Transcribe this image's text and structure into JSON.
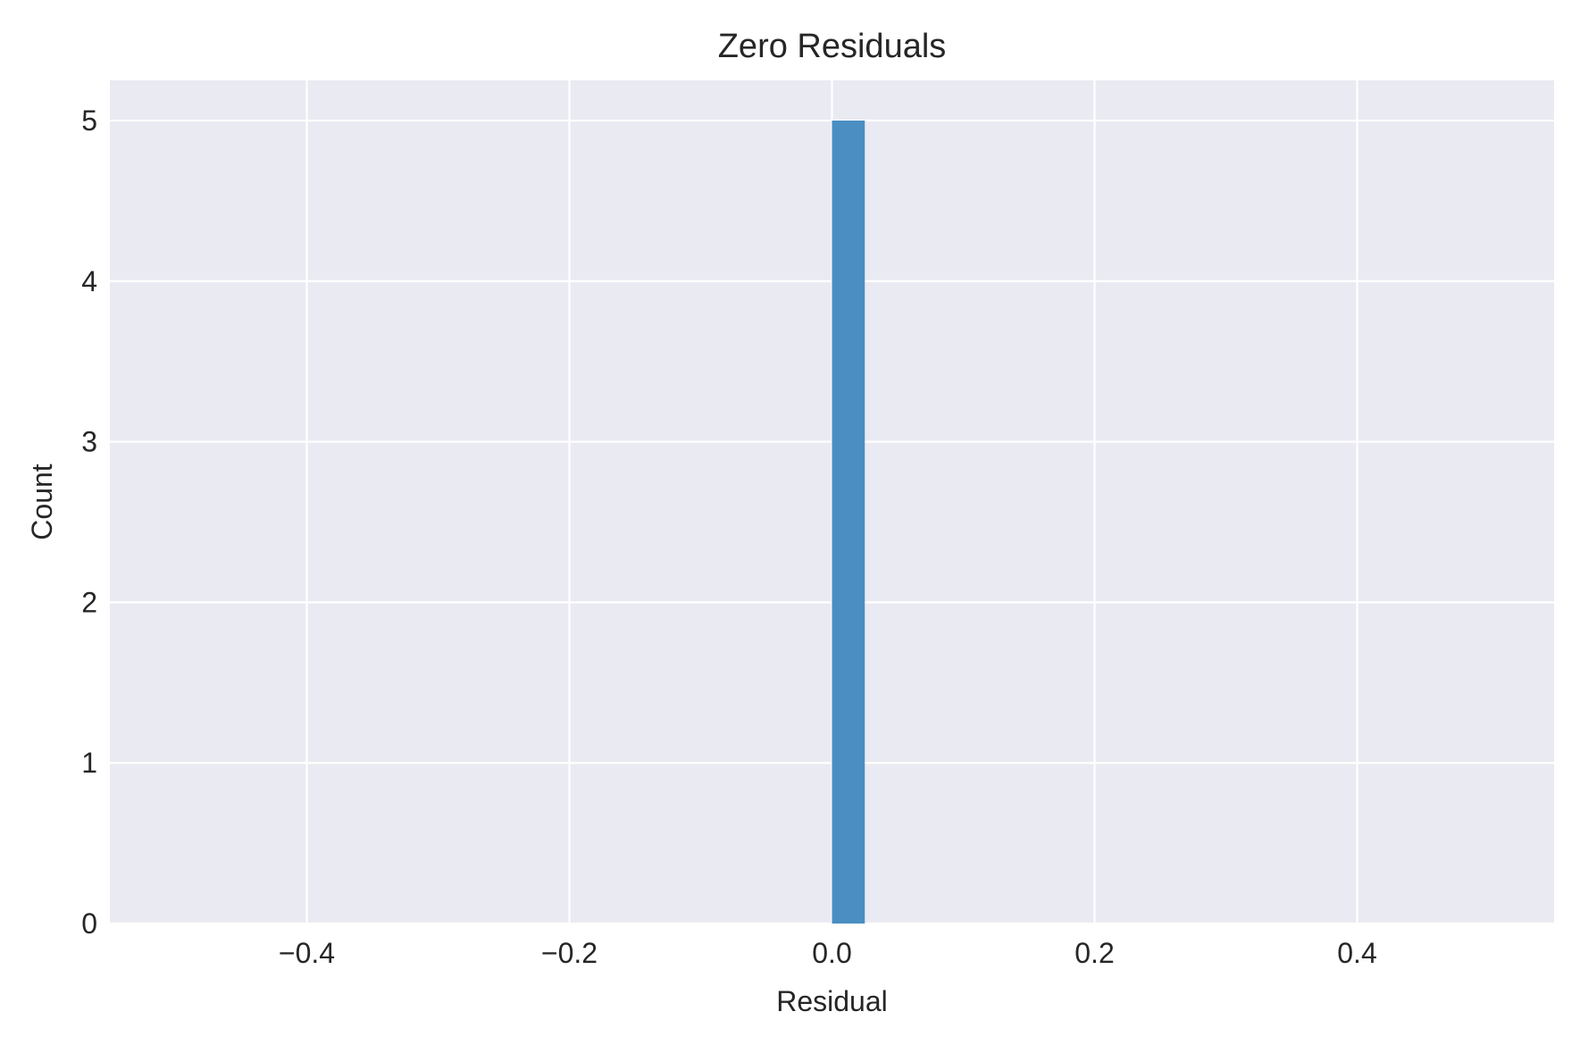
{
  "chart_data": {
    "type": "bar",
    "title": "Zero Residuals",
    "xlabel": "Residual",
    "ylabel": "Count",
    "xlim": [
      -0.55,
      0.55
    ],
    "ylim": [
      0,
      5.25
    ],
    "xticks": [
      -0.4,
      -0.2,
      0.0,
      0.2,
      0.4
    ],
    "xtick_labels": [
      "−0.4",
      "−0.2",
      "0.0",
      "0.2",
      "0.4"
    ],
    "yticks": [
      0,
      1,
      2,
      3,
      4,
      5
    ],
    "ytick_labels": [
      "0",
      "1",
      "2",
      "3",
      "4",
      "5"
    ],
    "grid": true,
    "bins": [
      {
        "x0": 0.0,
        "x1": 0.025,
        "count": 5
      }
    ],
    "colors": {
      "bar": "#4a8ec2",
      "plot_background": "#eaeaf2",
      "grid": "#ffffff"
    }
  }
}
